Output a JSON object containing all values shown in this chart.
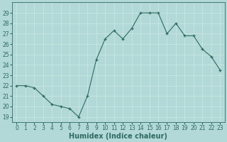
{
  "xlabel": "Humidex (Indice chaleur)",
  "x": [
    0,
    1,
    2,
    3,
    4,
    5,
    6,
    7,
    8,
    9,
    10,
    11,
    12,
    13,
    14,
    15,
    16,
    17,
    18,
    19,
    20,
    21,
    22,
    23
  ],
  "y": [
    22,
    22,
    21.8,
    21,
    20.2,
    20,
    19.8,
    19,
    21,
    24.5,
    26.5,
    27.3,
    26.5,
    27.5,
    29,
    29,
    29,
    27,
    28,
    26.8,
    26.8,
    25.5,
    24.8,
    23.5
  ],
  "line_color": "#2e6b5e",
  "bg_color": "#b2d8d8",
  "grid_color": "#c9e8e0",
  "ylim": [
    18.5,
    30
  ],
  "xlim": [
    -0.5,
    23.5
  ],
  "yticks": [
    19,
    20,
    21,
    22,
    23,
    24,
    25,
    26,
    27,
    28,
    29
  ],
  "xticks": [
    0,
    1,
    2,
    3,
    4,
    5,
    6,
    7,
    8,
    9,
    10,
    11,
    12,
    13,
    14,
    15,
    16,
    17,
    18,
    19,
    20,
    21,
    22,
    23
  ],
  "tick_fontsize": 5.5,
  "xlabel_fontsize": 7.0
}
